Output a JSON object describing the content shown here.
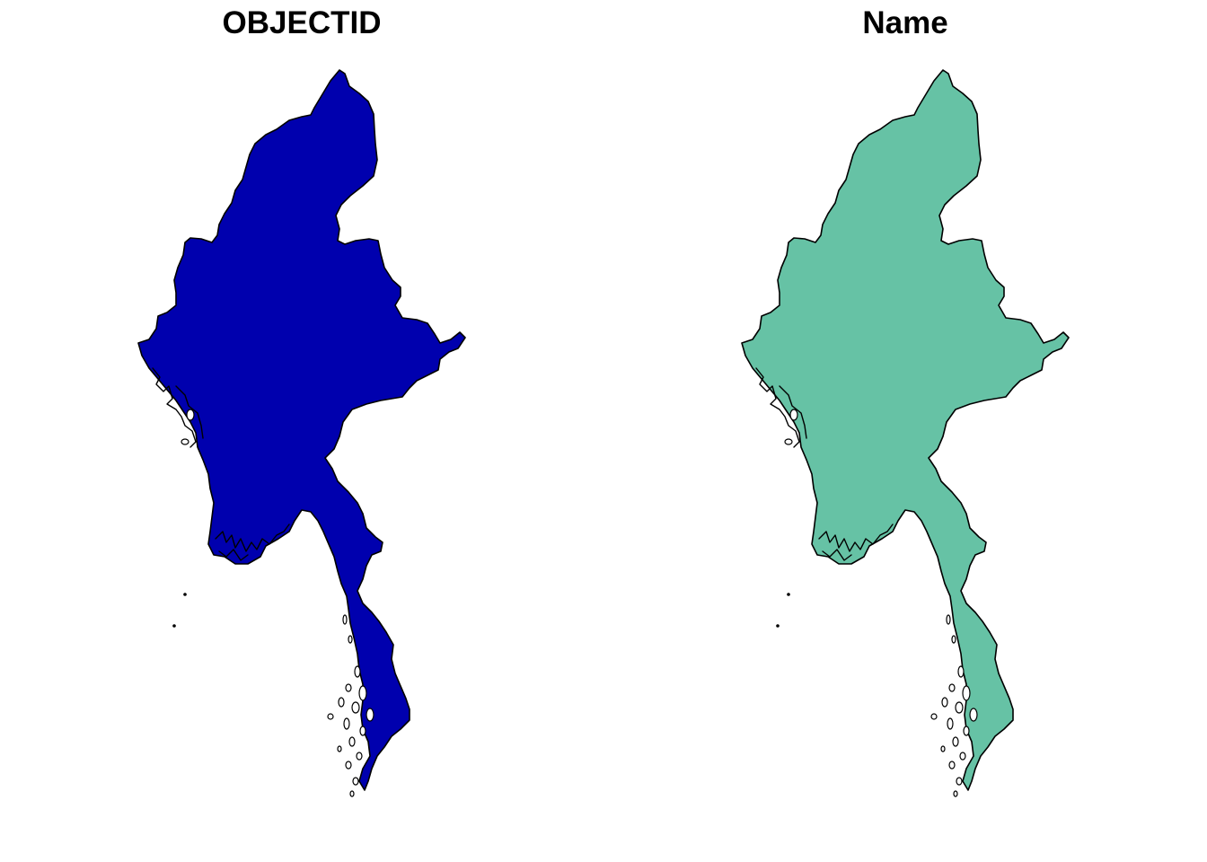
{
  "panels": [
    {
      "title": "OBJECTID",
      "fill_color": "#0000AE"
    },
    {
      "title": "Name",
      "fill_color": "#66C2A5"
    }
  ]
}
